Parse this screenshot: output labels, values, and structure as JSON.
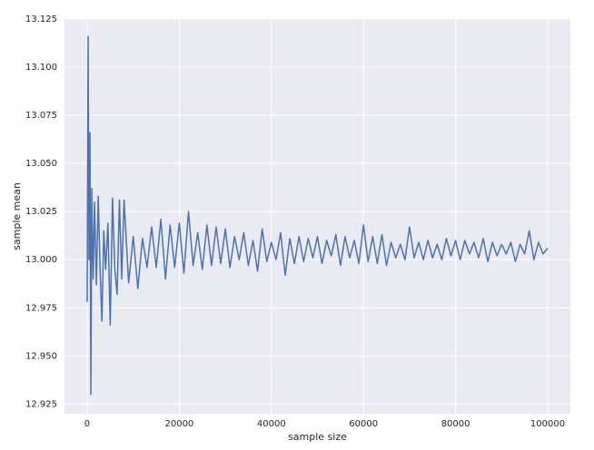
{
  "chart_data": {
    "type": "line",
    "xlabel": "sample size",
    "ylabel": "sample mean",
    "color": "#4c72b0",
    "grid": true,
    "xlim": [
      -4930,
      104930
    ],
    "ylim": [
      12.92,
      13.125
    ],
    "xticks": [
      0,
      20000,
      40000,
      60000,
      80000,
      100000
    ],
    "yticks": [
      12.925,
      {
        "value": 12.95,
        "label": "12.950"
      },
      12.975,
      {
        "value": 13.0,
        "label": "13.000"
      },
      13.025,
      {
        "value": 13.05,
        "label": "13.050"
      },
      13.075,
      {
        "value": 13.1,
        "label": "13.100"
      },
      13.125
    ],
    "x": [
      0,
      200,
      400,
      600,
      800,
      1000,
      1300,
      1600,
      2000,
      2400,
      2800,
      3200,
      3600,
      4000,
      4500,
      5000,
      5500,
      6000,
      6500,
      7000,
      7500,
      8000,
      9000,
      10000,
      11000,
      12000,
      13000,
      14000,
      15000,
      16000,
      17000,
      18000,
      19000,
      20000,
      21000,
      22000,
      23000,
      24000,
      25000,
      26000,
      27000,
      28000,
      29000,
      30000,
      31000,
      32000,
      33000,
      34000,
      35000,
      36000,
      37000,
      38000,
      39000,
      40000,
      41000,
      42000,
      43000,
      44000,
      45000,
      46000,
      47000,
      48000,
      49000,
      50000,
      51000,
      52000,
      53000,
      54000,
      55000,
      56000,
      57000,
      58000,
      59000,
      60000,
      61000,
      62000,
      63000,
      64000,
      65000,
      66000,
      67000,
      68000,
      69000,
      70000,
      71000,
      72000,
      73000,
      74000,
      75000,
      76000,
      77000,
      78000,
      79000,
      80000,
      81000,
      82000,
      83000,
      84000,
      85000,
      86000,
      87000,
      88000,
      89000,
      90000,
      91000,
      92000,
      93000,
      94000,
      95000,
      96000,
      97000,
      98000,
      99000,
      100000
    ],
    "values": [
      12.978,
      13.116,
      13.0,
      13.066,
      12.93,
      13.037,
      12.99,
      13.03,
      12.987,
      13.033,
      12.995,
      12.968,
      13.015,
      12.995,
      13.019,
      12.966,
      13.032,
      12.995,
      12.982,
      13.031,
      12.99,
      13.031,
      12.988,
      13.012,
      12.985,
      13.011,
      12.996,
      13.017,
      12.996,
      13.021,
      12.99,
      13.018,
      12.996,
      13.019,
      12.993,
      13.025,
      12.997,
      13.014,
      12.995,
      13.018,
      12.997,
      13.017,
      12.998,
      13.016,
      12.996,
      13.012,
      13.0,
      13.014,
      12.997,
      13.01,
      12.994,
      13.016,
      12.999,
      13.009,
      13.0,
      13.014,
      12.992,
      13.011,
      12.998,
      13.012,
      12.999,
      13.011,
      13.001,
      13.012,
      12.998,
      13.01,
      13.002,
      13.013,
      12.997,
      13.012,
      13.001,
      13.01,
      12.998,
      13.018,
      12.999,
      13.012,
      12.998,
      13.013,
      12.997,
      13.009,
      13.001,
      13.008,
      13.0,
      13.017,
      13.001,
      13.009,
      13.0,
      13.01,
      13.001,
      13.008,
      13.0,
      13.011,
      13.002,
      13.01,
      13.0,
      13.01,
      13.003,
      13.009,
      13.001,
      13.011,
      12.999,
      13.009,
      13.002,
      13.008,
      13.003,
      13.009,
      12.999,
      13.008,
      13.003,
      13.015,
      13.0,
      13.009,
      13.003,
      13.006
    ]
  }
}
